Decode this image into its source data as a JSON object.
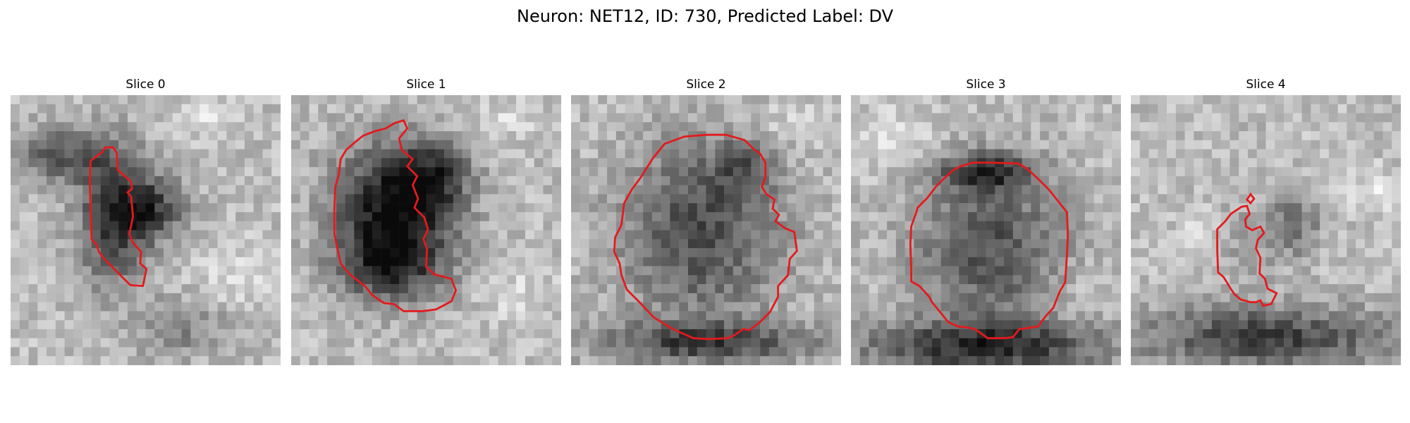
{
  "figure": {
    "title": "Neuron: NET12, ID: 730, Predicted Label: DV"
  },
  "panels": [
    {
      "title": "Slice 0"
    },
    {
      "title": "Slice 1"
    },
    {
      "title": "Slice 2"
    },
    {
      "title": "Slice 3"
    },
    {
      "title": "Slice 4"
    }
  ],
  "colors": {
    "contour": "#e41a1c",
    "background": "#ffffff"
  }
}
